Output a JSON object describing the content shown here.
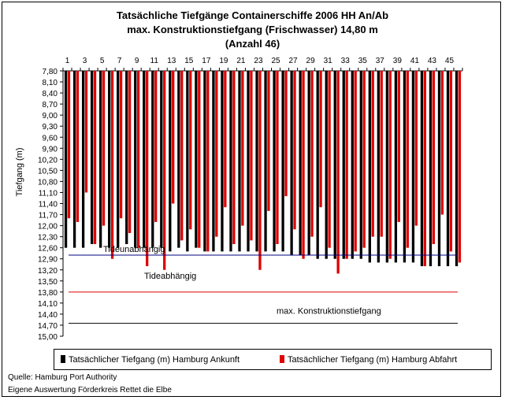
{
  "chart_data": {
    "type": "bar",
    "title_lines": [
      "Tatsächliche Tiefgänge Containerschiffe 2006 HH An/Ab",
      "max. Konstruktionstiefgang (Frischwasser) 14,80 m",
      "(Anzahl 46)"
    ],
    "ylabel": "Tiefgang (m)",
    "y_axis": {
      "min": 7.8,
      "max": 15.0,
      "reversed": true,
      "ticks": [
        "7,80",
        "8,10",
        "8,40",
        "8,70",
        "9,00",
        "9,30",
        "9,60",
        "9,90",
        "10,20",
        "10,50",
        "10,80",
        "11,10",
        "11,40",
        "11,70",
        "12,00",
        "12,30",
        "12,60",
        "12,90",
        "13,20",
        "13,50",
        "13,80",
        "14,10",
        "14,40",
        "14,70",
        "15,00"
      ]
    },
    "x_tick_labels": [
      "1",
      "3",
      "5",
      "7",
      "9",
      "11",
      "13",
      "15",
      "17",
      "19",
      "21",
      "23",
      "25",
      "27",
      "29",
      "31",
      "33",
      "35",
      "37",
      "39",
      "41",
      "43",
      "45"
    ],
    "categories": [
      1,
      2,
      3,
      4,
      5,
      6,
      7,
      8,
      9,
      10,
      11,
      12,
      13,
      14,
      15,
      16,
      17,
      18,
      19,
      20,
      21,
      22,
      23,
      24,
      25,
      26,
      27,
      28,
      29,
      30,
      31,
      32,
      33,
      34,
      35,
      36,
      37,
      38,
      39,
      40,
      41,
      42,
      43,
      44,
      45,
      46
    ],
    "series": [
      {
        "name": "Tatsächlicher Tiefgang (m) Hamburg Ankunft",
        "color": "#000000",
        "values": [
          12.6,
          12.6,
          12.6,
          12.5,
          12.6,
          12.6,
          12.6,
          12.5,
          12.6,
          12.6,
          12.6,
          12.6,
          12.7,
          12.6,
          12.7,
          12.6,
          12.7,
          12.7,
          12.7,
          12.7,
          12.7,
          12.7,
          12.7,
          12.7,
          12.7,
          12.7,
          12.8,
          12.8,
          12.8,
          12.9,
          12.9,
          12.9,
          12.9,
          12.9,
          12.9,
          13.0,
          13.0,
          13.0,
          13.0,
          13.0,
          13.0,
          13.1,
          13.1,
          13.1,
          13.1,
          13.1
        ]
      },
      {
        "name": "Tatsächlicher Tiefgang (m) Hamburg Abfahrt",
        "color": "#e00000",
        "values": [
          11.8,
          11.9,
          11.1,
          12.5,
          12.0,
          12.9,
          11.8,
          12.2,
          12.6,
          13.1,
          11.9,
          13.2,
          11.4,
          12.4,
          12.1,
          12.6,
          12.7,
          12.3,
          11.5,
          12.5,
          12.0,
          12.4,
          13.2,
          11.6,
          12.5,
          11.2,
          12.1,
          12.9,
          12.3,
          11.5,
          12.6,
          13.3,
          12.9,
          12.7,
          12.6,
          12.3,
          12.3,
          12.9,
          11.9,
          12.6,
          12.0,
          13.1,
          12.5,
          11.7,
          12.7,
          13.0
        ]
      }
    ],
    "reference_lines": [
      {
        "value": 12.8,
        "color": "#000080",
        "label": "Tideunabhängig"
      },
      {
        "value": 13.8,
        "color": "#e00000",
        "label": "Tideabhängig"
      },
      {
        "value": 14.65,
        "color": "#000000",
        "label": "max. Konstruktionstiefgang"
      }
    ],
    "legend_placement": "bottom",
    "grid": false
  },
  "footer": {
    "source": "Quelle: Hamburg Port Authority",
    "credit": "Eigene Auswertung Förderkreis Rettet die Elbe"
  }
}
